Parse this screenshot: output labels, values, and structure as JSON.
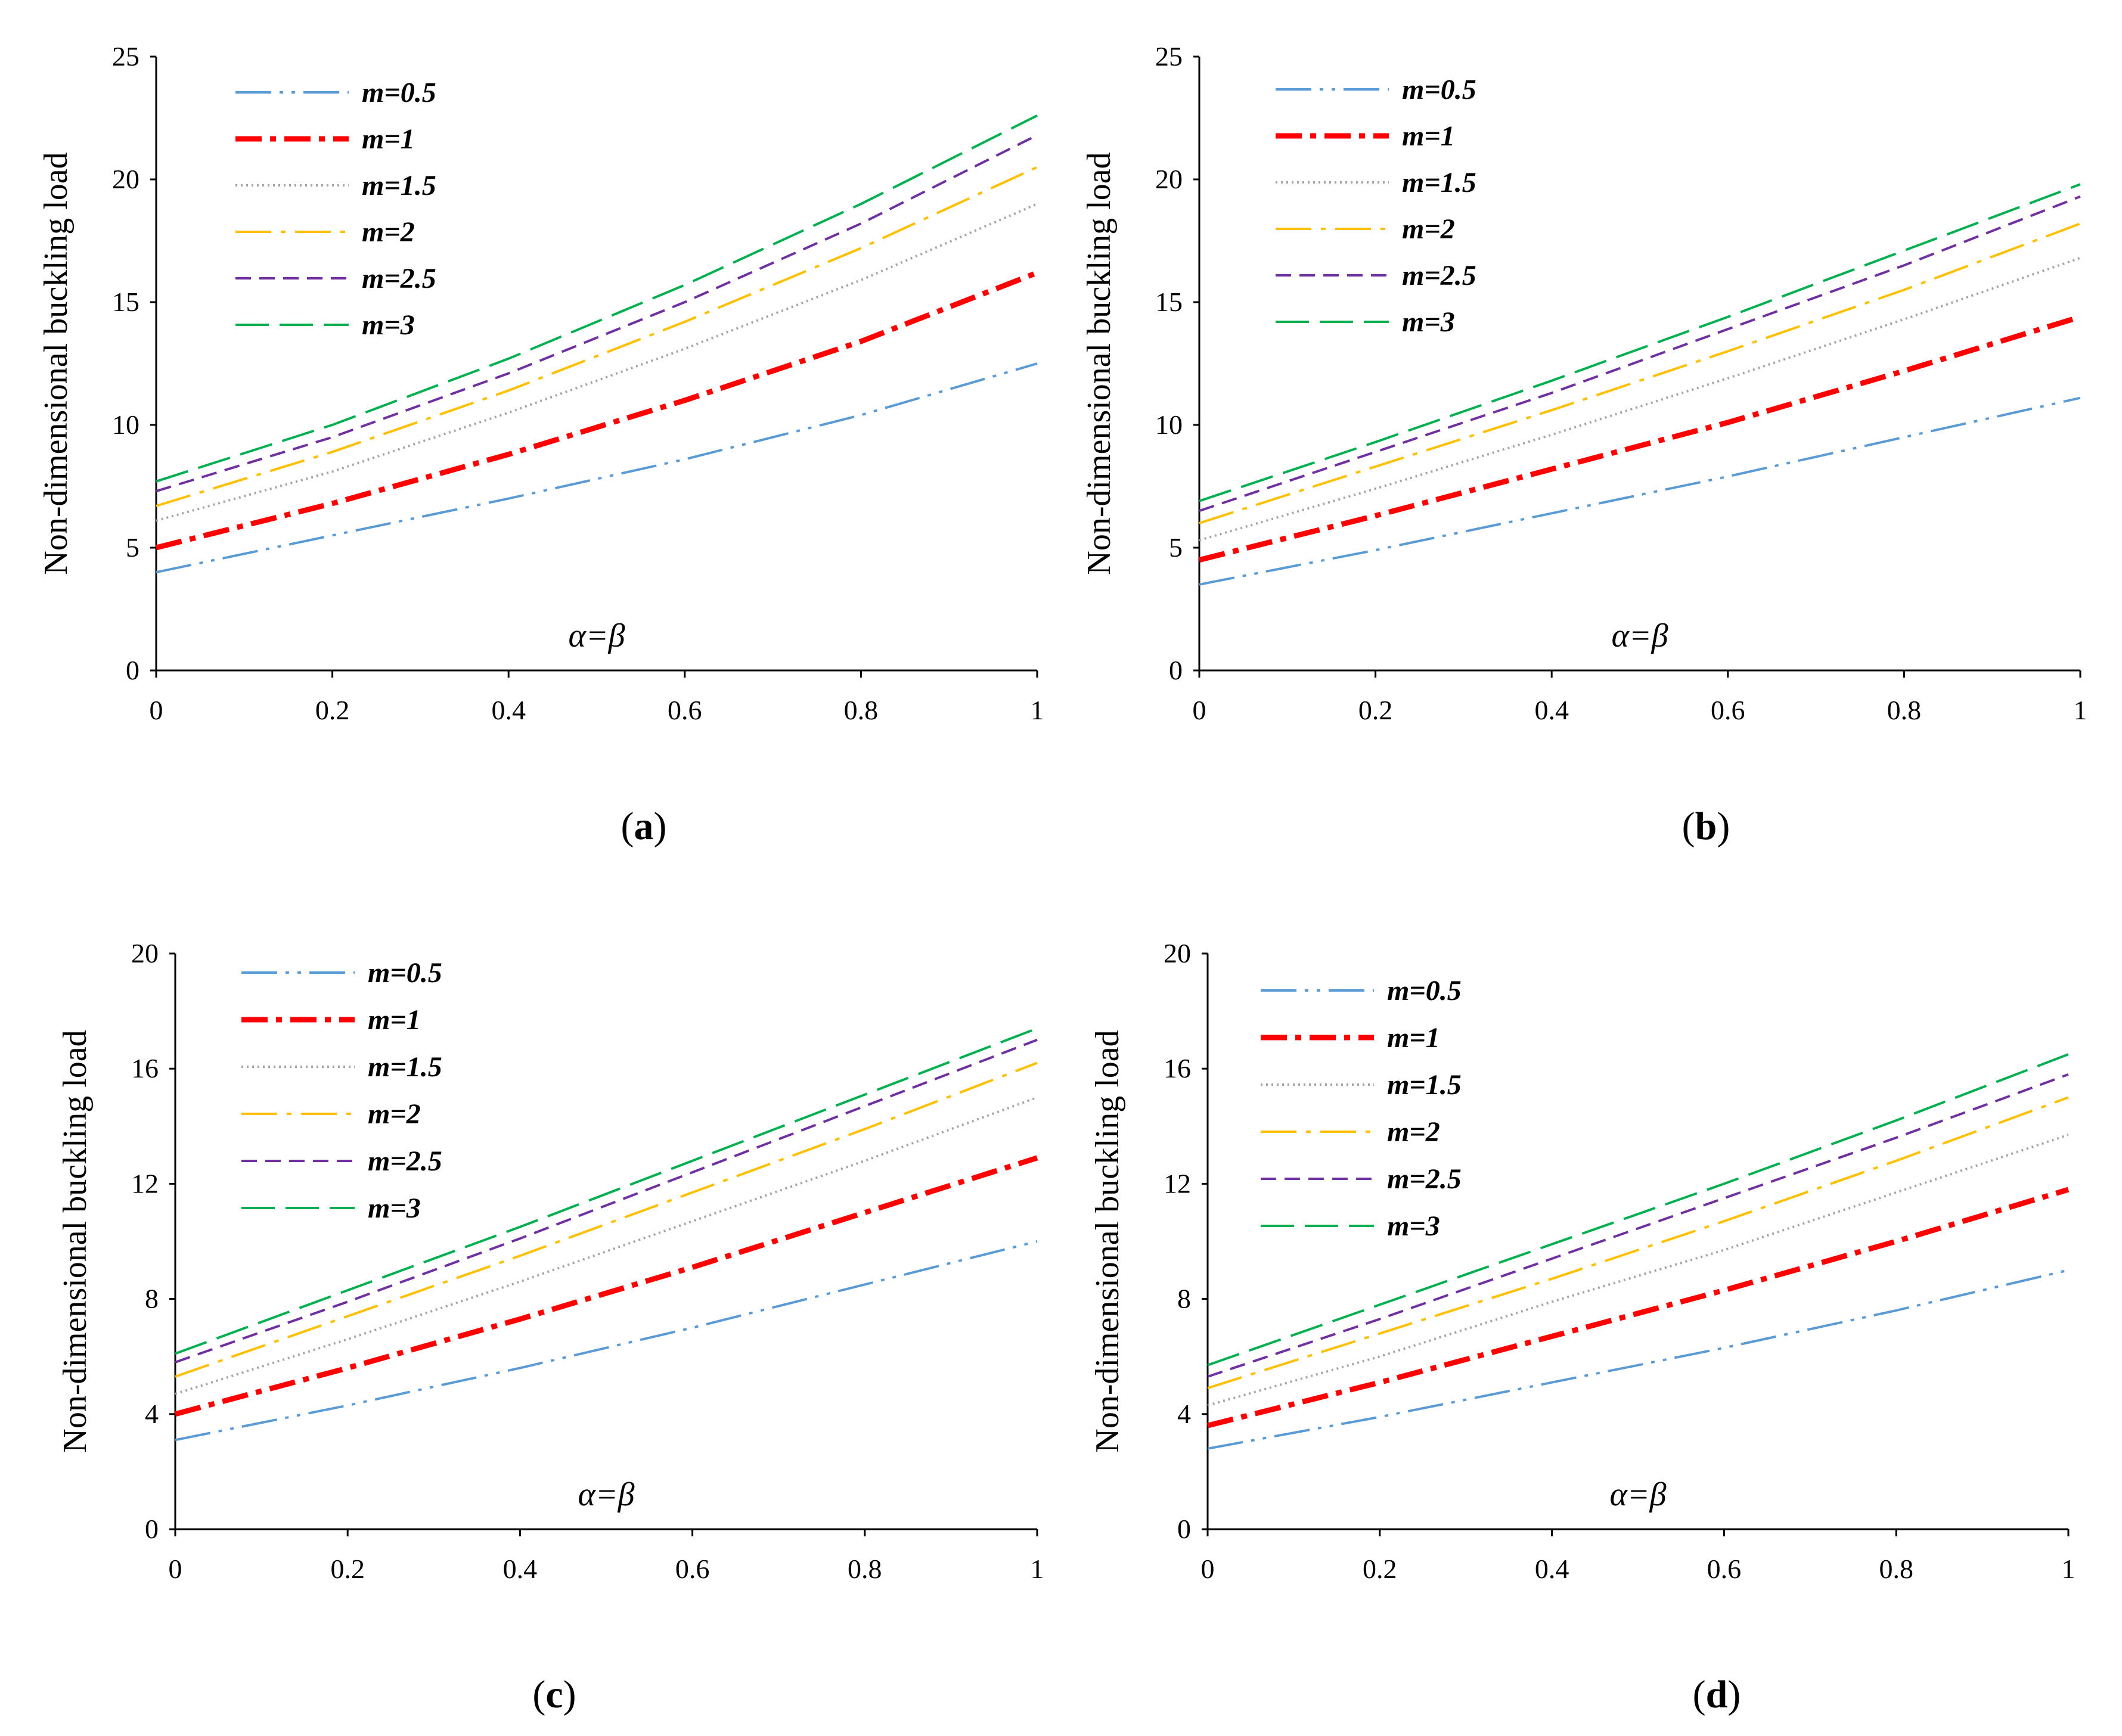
{
  "figure": {
    "panels": [
      "a",
      "b",
      "c",
      "d"
    ]
  },
  "chart_data": [
    {
      "type": "line",
      "panel_label": "a",
      "xlabel": "α=β",
      "ylabel": "Non-dimensional buckling load",
      "xlim": [
        0,
        1
      ],
      "ylim": [
        0,
        25
      ],
      "xticks": [
        "0",
        "0.2",
        "0.4",
        "0.6",
        "0.8",
        "1"
      ],
      "yticks": [
        "0",
        "5",
        "10",
        "15",
        "20",
        "25"
      ],
      "legend_position": "top-left",
      "x": [
        0,
        0.2,
        0.4,
        0.6,
        0.8,
        1.0
      ],
      "series": [
        {
          "name": "m=0.5",
          "color": "#5b9bd5",
          "dash": "dash-dot-dot",
          "values": [
            4.0,
            5.5,
            7.0,
            8.6,
            10.4,
            12.5
          ]
        },
        {
          "name": "m=1",
          "color": "#ff0000",
          "dash": "dash-dot-bold",
          "values": [
            5.0,
            6.8,
            8.8,
            11.0,
            13.4,
            16.2
          ]
        },
        {
          "name": "m=1.5",
          "color": "#a5a5a5",
          "dash": "dot",
          "values": [
            6.1,
            8.1,
            10.5,
            13.1,
            15.9,
            19.0
          ]
        },
        {
          "name": "m=2",
          "color": "#ffc000",
          "dash": "long-dash-dot",
          "values": [
            6.7,
            8.9,
            11.4,
            14.2,
            17.2,
            20.5
          ]
        },
        {
          "name": "m=2.5",
          "color": "#7030a0",
          "dash": "dash",
          "values": [
            7.3,
            9.5,
            12.1,
            15.0,
            18.2,
            21.8
          ]
        },
        {
          "name": "m=3",
          "color": "#00b050",
          "dash": "long-dash",
          "values": [
            7.7,
            10.0,
            12.7,
            15.7,
            19.0,
            22.6
          ]
        }
      ]
    },
    {
      "type": "line",
      "panel_label": "b",
      "xlabel": "α=β",
      "ylabel": "Non-dimensional buckling load",
      "xlim": [
        0,
        1
      ],
      "ylim": [
        0,
        25
      ],
      "xticks": [
        "0",
        "0.2",
        "0.4",
        "0.6",
        "0.8",
        "1"
      ],
      "yticks": [
        "0",
        "5",
        "10",
        "15",
        "20",
        "25"
      ],
      "legend_position": "top-left",
      "x": [
        0,
        0.2,
        0.4,
        0.6,
        0.8,
        1.0
      ],
      "series": [
        {
          "name": "m=0.5",
          "color": "#5b9bd5",
          "dash": "dash-dot-dot",
          "values": [
            3.5,
            4.9,
            6.4,
            7.9,
            9.5,
            11.1
          ]
        },
        {
          "name": "m=1",
          "color": "#ff0000",
          "dash": "dash-dot-bold",
          "values": [
            4.5,
            6.3,
            8.2,
            10.1,
            12.2,
            14.4
          ]
        },
        {
          "name": "m=1.5",
          "color": "#a5a5a5",
          "dash": "dot",
          "values": [
            5.3,
            7.4,
            9.6,
            11.9,
            14.3,
            16.8
          ]
        },
        {
          "name": "m=2",
          "color": "#ffc000",
          "dash": "long-dash-dot",
          "values": [
            6.0,
            8.3,
            10.6,
            13.0,
            15.5,
            18.2
          ]
        },
        {
          "name": "m=2.5",
          "color": "#7030a0",
          "dash": "dash",
          "values": [
            6.5,
            8.9,
            11.3,
            13.9,
            16.5,
            19.3
          ]
        },
        {
          "name": "m=3",
          "color": "#00b050",
          "dash": "long-dash",
          "values": [
            6.9,
            9.3,
            11.8,
            14.4,
            17.1,
            19.8
          ]
        }
      ]
    },
    {
      "type": "line",
      "panel_label": "c",
      "xlabel": "α=β",
      "ylabel": "Non-dimensional buckling load",
      "xlim": [
        0,
        1
      ],
      "ylim": [
        0,
        20
      ],
      "xticks": [
        "0",
        "0.2",
        "0.4",
        "0.6",
        "0.8",
        "1"
      ],
      "yticks": [
        "0",
        "4",
        "8",
        "12",
        "16",
        "20"
      ],
      "legend_position": "top-left",
      "x": [
        0,
        0.2,
        0.4,
        0.6,
        0.8,
        1.0
      ],
      "series": [
        {
          "name": "m=0.5",
          "color": "#5b9bd5",
          "dash": "dash-dot-dot",
          "values": [
            3.1,
            4.3,
            5.6,
            7.0,
            8.5,
            10.0
          ]
        },
        {
          "name": "m=1",
          "color": "#ff0000",
          "dash": "dash-dot-bold",
          "values": [
            4.0,
            5.6,
            7.3,
            9.1,
            11.0,
            12.9
          ]
        },
        {
          "name": "m=1.5",
          "color": "#a5a5a5",
          "dash": "dot",
          "values": [
            4.7,
            6.6,
            8.6,
            10.7,
            12.8,
            15.0
          ]
        },
        {
          "name": "m=2",
          "color": "#ffc000",
          "dash": "long-dash-dot",
          "values": [
            5.3,
            7.4,
            9.5,
            11.7,
            13.9,
            16.2
          ]
        },
        {
          "name": "m=2.5",
          "color": "#7030a0",
          "dash": "dash",
          "values": [
            5.8,
            7.9,
            10.1,
            12.4,
            14.7,
            17.0
          ]
        },
        {
          "name": "m=3",
          "color": "#00b050",
          "dash": "long-dash",
          "values": [
            6.1,
            8.3,
            10.5,
            12.8,
            15.1,
            17.4
          ]
        }
      ]
    },
    {
      "type": "line",
      "panel_label": "d",
      "xlabel": "α=β",
      "ylabel": "Non-dimensional buckling load",
      "xlim": [
        0,
        1
      ],
      "ylim": [
        0,
        20
      ],
      "xticks": [
        "0",
        "0.2",
        "0.4",
        "0.6",
        "0.8",
        "1"
      ],
      "yticks": [
        "0",
        "4",
        "8",
        "12",
        "16",
        "20"
      ],
      "legend_position": "top-left",
      "x": [
        0,
        0.2,
        0.4,
        0.6,
        0.8,
        1.0
      ],
      "series": [
        {
          "name": "m=0.5",
          "color": "#5b9bd5",
          "dash": "dash-dot-dot",
          "values": [
            2.8,
            3.9,
            5.1,
            6.3,
            7.6,
            9.0
          ]
        },
        {
          "name": "m=1",
          "color": "#ff0000",
          "dash": "dash-dot-bold",
          "values": [
            3.6,
            5.1,
            6.7,
            8.3,
            10.0,
            11.8
          ]
        },
        {
          "name": "m=1.5",
          "color": "#a5a5a5",
          "dash": "dot",
          "values": [
            4.3,
            6.0,
            7.9,
            9.7,
            11.7,
            13.7
          ]
        },
        {
          "name": "m=2",
          "color": "#ffc000",
          "dash": "long-dash-dot",
          "values": [
            4.9,
            6.8,
            8.7,
            10.7,
            12.8,
            15.0
          ]
        },
        {
          "name": "m=2.5",
          "color": "#7030a0",
          "dash": "dash",
          "values": [
            5.3,
            7.3,
            9.4,
            11.5,
            13.6,
            15.8
          ]
        },
        {
          "name": "m=3",
          "color": "#00b050",
          "dash": "long-dash",
          "values": [
            5.7,
            7.8,
            9.9,
            12.0,
            14.2,
            16.5
          ]
        }
      ]
    }
  ]
}
